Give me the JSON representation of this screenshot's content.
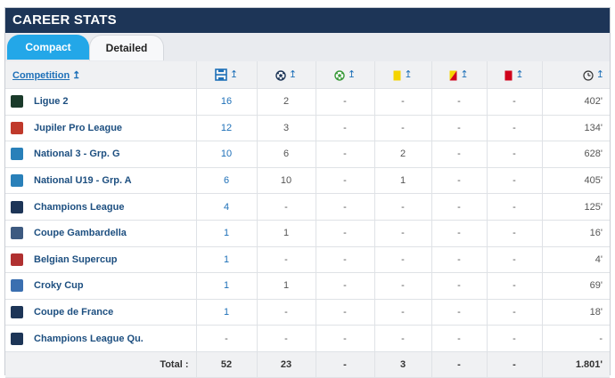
{
  "header": {
    "title": "CAREER STATS"
  },
  "tabs": [
    {
      "label": "Compact"
    },
    {
      "label": "Detailed"
    }
  ],
  "columns": {
    "competition": "Competition",
    "sort_arrow": "↥",
    "icons": [
      "appearances-icon",
      "goals-icon",
      "assists-icon",
      "yellow-card-icon",
      "second-yellow-icon",
      "red-card-icon",
      "minutes-clock-icon"
    ]
  },
  "rows": [
    {
      "name": "Ligue 2",
      "apps": "16",
      "goals": "2",
      "assists": "-",
      "yellow": "-",
      "second_yellow": "-",
      "red": "-",
      "minutes": "402'"
    },
    {
      "name": "Jupiler Pro League",
      "apps": "12",
      "goals": "3",
      "assists": "-",
      "yellow": "-",
      "second_yellow": "-",
      "red": "-",
      "minutes": "134'"
    },
    {
      "name": "National 3 - Grp. G",
      "apps": "10",
      "goals": "6",
      "assists": "-",
      "yellow": "2",
      "second_yellow": "-",
      "red": "-",
      "minutes": "628'"
    },
    {
      "name": "National U19 - Grp. A",
      "apps": "6",
      "goals": "10",
      "assists": "-",
      "yellow": "1",
      "second_yellow": "-",
      "red": "-",
      "minutes": "405'"
    },
    {
      "name": "Champions League",
      "apps": "4",
      "goals": "-",
      "assists": "-",
      "yellow": "-",
      "second_yellow": "-",
      "red": "-",
      "minutes": "125'"
    },
    {
      "name": "Coupe Gambardella",
      "apps": "1",
      "goals": "1",
      "assists": "-",
      "yellow": "-",
      "second_yellow": "-",
      "red": "-",
      "minutes": "16'"
    },
    {
      "name": "Belgian Supercup",
      "apps": "1",
      "goals": "-",
      "assists": "-",
      "yellow": "-",
      "second_yellow": "-",
      "red": "-",
      "minutes": "4'"
    },
    {
      "name": "Croky Cup",
      "apps": "1",
      "goals": "1",
      "assists": "-",
      "yellow": "-",
      "second_yellow": "-",
      "red": "-",
      "minutes": "69'"
    },
    {
      "name": "Coupe de France",
      "apps": "1",
      "goals": "-",
      "assists": "-",
      "yellow": "-",
      "second_yellow": "-",
      "red": "-",
      "minutes": "18'"
    },
    {
      "name": "Champions League Qu.",
      "apps": "-",
      "goals": "-",
      "assists": "-",
      "yellow": "-",
      "second_yellow": "-",
      "red": "-",
      "minutes": "-"
    }
  ],
  "total": {
    "label": "Total :",
    "apps": "52",
    "goals": "23",
    "assists": "-",
    "yellow": "3",
    "second_yellow": "-",
    "red": "-",
    "minutes": "1.801'"
  },
  "colors": {
    "header": "#1d3557",
    "tab_active": "#23a7e8",
    "link": "#1e70b8",
    "yellow_card": "#f5d400",
    "red_card": "#d0021b"
  }
}
